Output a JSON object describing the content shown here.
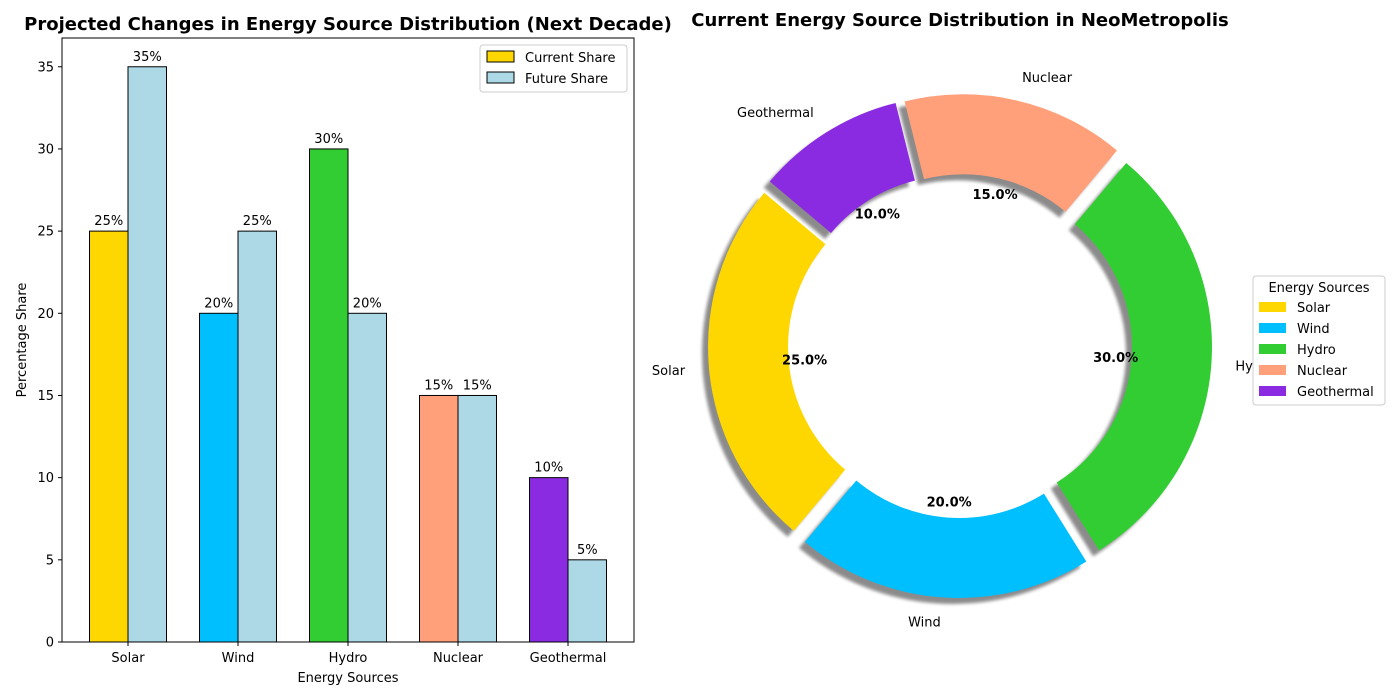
{
  "chart_data": [
    {
      "type": "bar",
      "title": "Projected Changes in Energy Source Distribution (Next Decade)",
      "xlabel": "Energy Sources",
      "ylabel": "Percentage Share",
      "categories": [
        "Solar",
        "Wind",
        "Hydro",
        "Nuclear",
        "Geothermal"
      ],
      "ylim": [
        0,
        36.75
      ],
      "yticks": [
        0,
        5,
        10,
        15,
        20,
        25,
        30,
        35
      ],
      "legend_position": "top-right",
      "series": [
        {
          "name": "Current Share",
          "values": [
            25,
            20,
            30,
            15,
            10
          ],
          "labels": [
            "25%",
            "20%",
            "30%",
            "15%",
            "10%"
          ],
          "colors": [
            "#FFD700",
            "#00BFFF",
            "#32CD32",
            "#FFA07A",
            "#8A2BE2"
          ],
          "legend_color": "#FFD700"
        },
        {
          "name": "Future Share",
          "values": [
            35,
            25,
            20,
            15,
            5
          ],
          "labels": [
            "35%",
            "25%",
            "20%",
            "15%",
            "5%"
          ],
          "color": "#ADD8E6"
        }
      ]
    },
    {
      "type": "pie",
      "donut": true,
      "title": "Current Energy Source Distribution in NeoMetropolis",
      "legend_title": "Energy Sources",
      "legend_position": "right",
      "start_angle": 140,
      "slices": [
        {
          "label": "Solar",
          "value": 25,
          "pct_label": "25.0%",
          "color": "#FFD700"
        },
        {
          "label": "Wind",
          "value": 20,
          "pct_label": "20.0%",
          "color": "#00BFFF"
        },
        {
          "label": "Hydro",
          "value": 30,
          "pct_label": "30.0%",
          "color": "#32CD32"
        },
        {
          "label": "Nuclear",
          "value": 15,
          "pct_label": "15.0%",
          "color": "#FFA07A"
        },
        {
          "label": "Geothermal",
          "value": 10,
          "pct_label": "10.0%",
          "color": "#8A2BE2"
        }
      ]
    }
  ]
}
